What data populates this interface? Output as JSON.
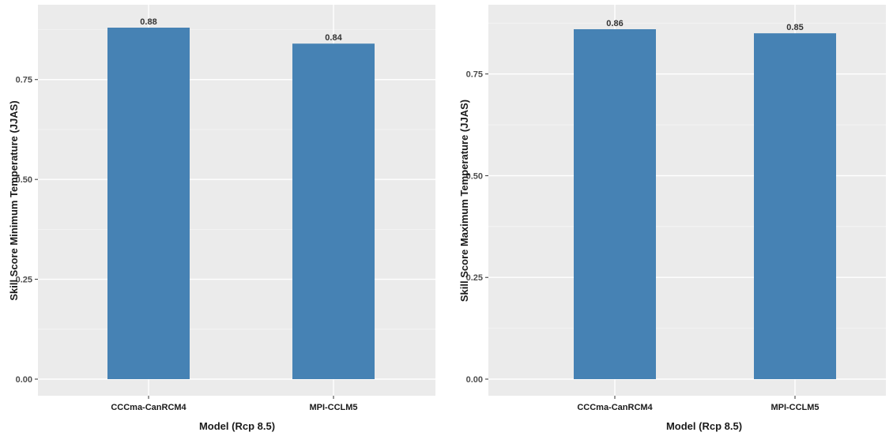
{
  "chart_data": [
    {
      "type": "bar",
      "title": "",
      "categories": [
        "CCCma-CanRCM4",
        "MPI-CCLM5"
      ],
      "values": [
        0.88,
        0.84
      ],
      "value_labels": [
        "0.88",
        "0.84"
      ],
      "xlabel": "Model (Rcp 8.5)",
      "ylabel": "Skill Score Minimum Temperature (JJAS)",
      "ylim": [
        0,
        0.88
      ],
      "yticks": [
        0.0,
        0.25,
        0.5,
        0.75
      ],
      "ytick_labels": [
        "0.00",
        "0.25",
        "0.50",
        "0.75"
      ],
      "bar_color": "#4682b4",
      "grid": true,
      "legend": "none"
    },
    {
      "type": "bar",
      "title": "",
      "categories": [
        "CCCma-CanRCM4",
        "MPI-CCLM5"
      ],
      "values": [
        0.86,
        0.85
      ],
      "value_labels": [
        "0.86",
        "0.85"
      ],
      "xlabel": "Model (Rcp 8.5)",
      "ylabel": "Skill Score Maximum Temperature (JJAS)",
      "ylim": [
        0,
        0.86
      ],
      "yticks": [
        0.0,
        0.25,
        0.5,
        0.75
      ],
      "ytick_labels": [
        "0.00",
        "0.25",
        "0.50",
        "0.75"
      ],
      "bar_color": "#4682b4",
      "grid": true,
      "legend": "none"
    }
  ]
}
